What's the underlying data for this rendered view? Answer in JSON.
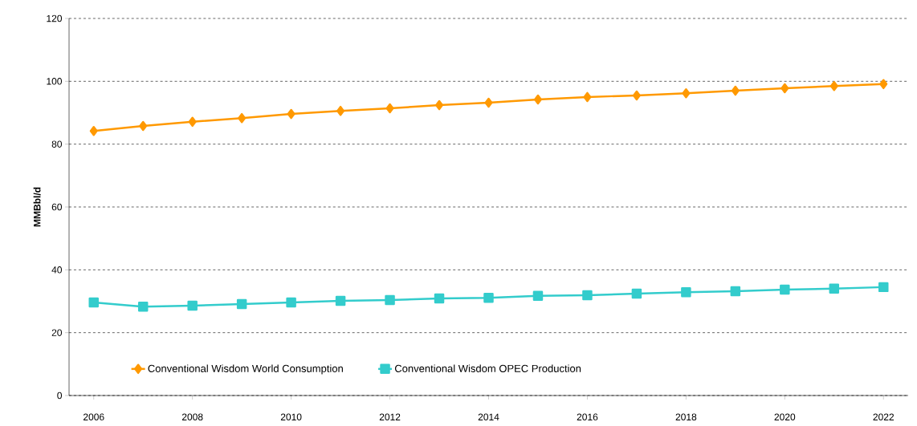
{
  "chart_data": {
    "type": "line",
    "ylabel": "MMBbl/d",
    "x": [
      2006,
      2007,
      2008,
      2009,
      2010,
      2011,
      2012,
      2013,
      2014,
      2015,
      2016,
      2017,
      2018,
      2019,
      2020,
      2021,
      2022
    ],
    "series": [
      {
        "name": "Conventional Wisdom World Consumption",
        "color": "#ff9900",
        "marker": "diamond",
        "values": [
          84.2,
          85.8,
          87.1,
          88.3,
          89.6,
          90.6,
          91.4,
          92.4,
          93.2,
          94.2,
          95.0,
          95.5,
          96.2,
          97.0,
          97.8,
          98.5,
          99.1
        ]
      },
      {
        "name": "Conventional Wisdom OPEC Production",
        "color": "#33cccc",
        "marker": "square",
        "values": [
          29.6,
          28.3,
          28.6,
          29.1,
          29.6,
          30.1,
          30.4,
          30.9,
          31.1,
          31.7,
          31.9,
          32.4,
          32.9,
          33.2,
          33.7,
          34.0,
          34.5
        ]
      }
    ],
    "xlim": [
      2005.5,
      2022.5
    ],
    "ylim": [
      0,
      120
    ],
    "xticks": [
      2006,
      2008,
      2010,
      2012,
      2014,
      2016,
      2018,
      2020,
      2022
    ],
    "yticks": [
      0,
      20,
      40,
      60,
      80,
      100,
      120
    ],
    "grid": "y",
    "line_style": "solid",
    "legend": "bottom"
  }
}
